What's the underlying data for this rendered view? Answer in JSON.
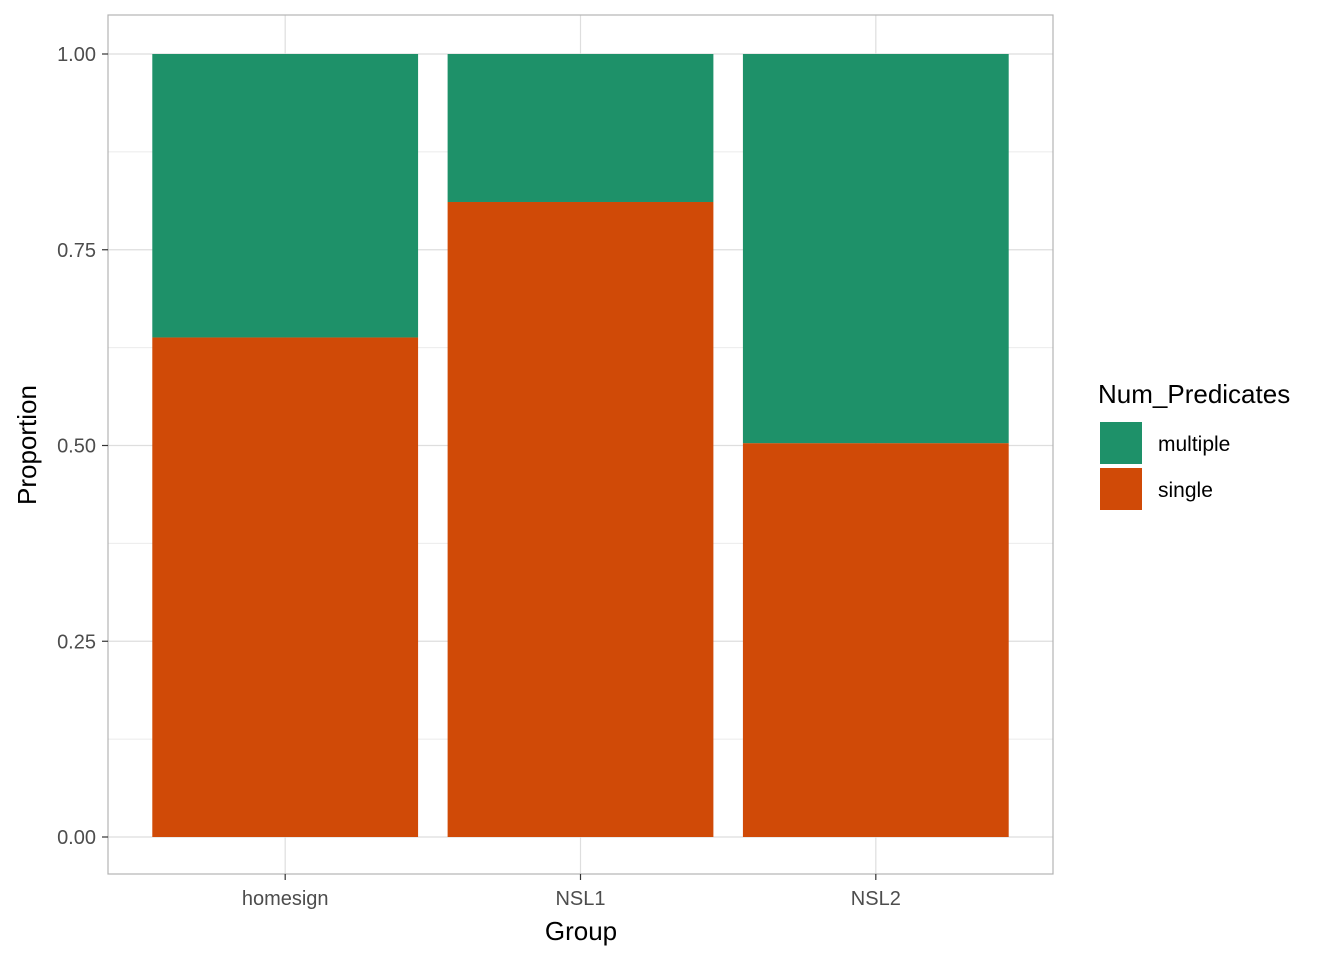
{
  "chart_data": {
    "type": "bar",
    "stacked": true,
    "categories": [
      "homesign",
      "NSL1",
      "NSL2"
    ],
    "series": [
      {
        "name": "single",
        "color": "#D04A07",
        "values": [
          0.638,
          0.811,
          0.503
        ]
      },
      {
        "name": "multiple",
        "color": "#1E9169",
        "values": [
          0.362,
          0.189,
          0.497
        ]
      }
    ],
    "xlabel": "Group",
    "ylabel": "Proportion",
    "ylim": [
      0,
      1
    ],
    "yticks": [
      "0.00",
      "0.25",
      "0.50",
      "0.75",
      "1.00"
    ],
    "grid": true,
    "legend": {
      "title": "Num_Predicates",
      "position": "right",
      "items": [
        {
          "label": "multiple",
          "color": "#1E9169"
        },
        {
          "label": "single",
          "color": "#D04A07"
        }
      ]
    }
  }
}
